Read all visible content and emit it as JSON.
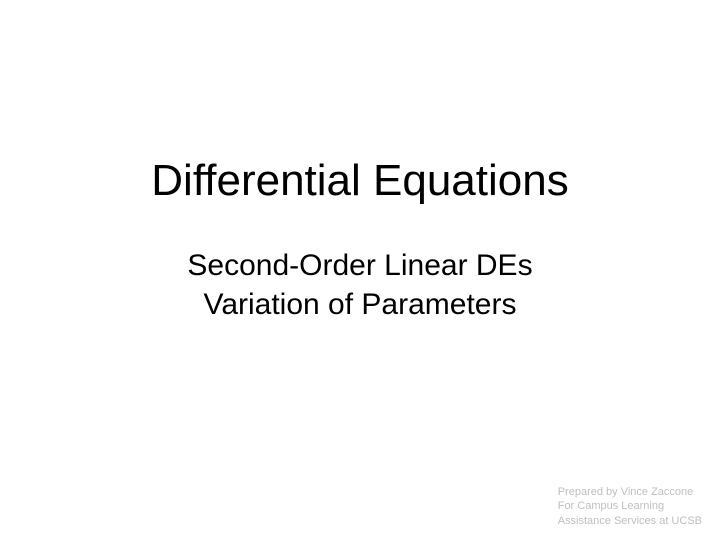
{
  "slide": {
    "title": "Differential Equations",
    "subtitle_line1": "Second-Order Linear DEs",
    "subtitle_line2": "Variation of Parameters"
  },
  "footer": {
    "line1": "Prepared by Vince Zaccone",
    "line2": "For Campus Learning",
    "line3": "Assistance Services at UCSB"
  },
  "styling": {
    "background_color": "#ffffff",
    "title_color": "#000000",
    "title_fontsize": 44,
    "subtitle_color": "#000000",
    "subtitle_fontsize": 30,
    "footer_color": "#bfbfbf",
    "footer_fontsize": 11,
    "font_family": "Verdana"
  }
}
